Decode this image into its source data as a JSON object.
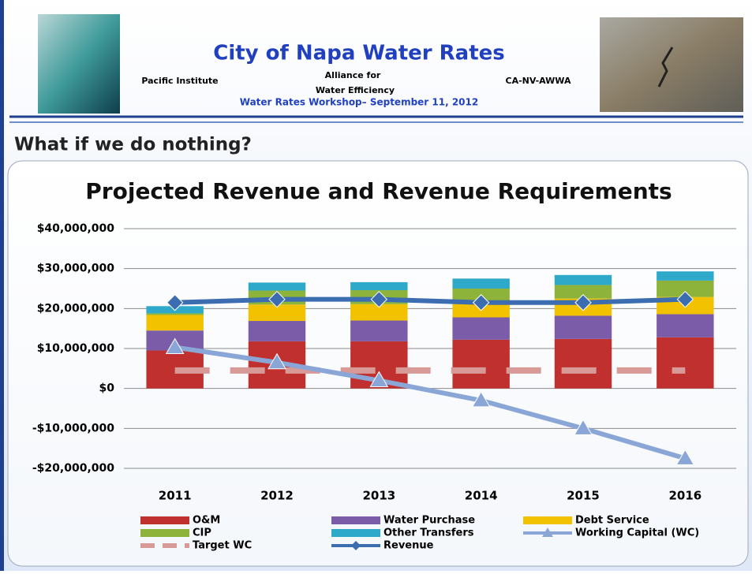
{
  "header": {
    "title": "City of Napa Water Rates",
    "left_org": "Pacific Institute",
    "center_org": [
      "Alliance for",
      "Water Efficiency"
    ],
    "right_org": "CA-NV-AWWA",
    "subtitle": "Water Rates Workshop– September 11, 2012"
  },
  "section_title": "What if we do nothing?",
  "chart_data": {
    "type": "combo",
    "title": "Projected Revenue and Revenue Requirements",
    "categories": [
      "2011",
      "2012",
      "2013",
      "2014",
      "2015",
      "2016"
    ],
    "ylim": [
      -20000000,
      40000000
    ],
    "yticks": [
      {
        "value": -20000000,
        "label": "-$20,000,000"
      },
      {
        "value": -10000000,
        "label": "-$10,000,000"
      },
      {
        "value": 0,
        "label": "$0"
      },
      {
        "value": 10000000,
        "label": "$10,000,000"
      },
      {
        "value": 20000000,
        "label": "$20,000,000"
      },
      {
        "value": 30000000,
        "label": "$30,000,000"
      },
      {
        "value": 40000000,
        "label": "$40,000,000"
      }
    ],
    "grid": true,
    "series": [
      {
        "name": "O&M",
        "type": "bar",
        "color": "#c0302e",
        "values": [
          9500000,
          11800000,
          11800000,
          12200000,
          12400000,
          12800000
        ]
      },
      {
        "name": "Water Purchase",
        "type": "bar",
        "color": "#7a5ca8",
        "values": [
          5000000,
          5100000,
          5200000,
          5600000,
          5800000,
          5800000
        ]
      },
      {
        "name": "Debt Service",
        "type": "bar",
        "color": "#f2c200",
        "values": [
          3900000,
          4100000,
          4100000,
          3800000,
          4300000,
          4300000
        ]
      },
      {
        "name": "CIP",
        "type": "bar",
        "color": "#8db33a",
        "values": [
          400000,
          3500000,
          3500000,
          3400000,
          3400000,
          4100000
        ]
      },
      {
        "name": "Other Transfers",
        "type": "bar",
        "color": "#2ea9c9",
        "values": [
          1800000,
          2000000,
          2000000,
          2500000,
          2500000,
          2300000
        ]
      },
      {
        "name": "Working Capital (WC)",
        "type": "line",
        "marker": "triangle",
        "color": "#8aa6d6",
        "values": [
          10300000,
          6500000,
          2000000,
          -3000000,
          -10000000,
          -17500000
        ]
      },
      {
        "name": "Target WC",
        "type": "line",
        "dashed": true,
        "color": "#d89a96",
        "values": [
          4500000,
          4500000,
          4500000,
          4500000,
          4500000,
          4500000
        ]
      },
      {
        "name": "Revenue",
        "type": "line",
        "marker": "diamond",
        "color": "#3c6db0",
        "values": [
          21500000,
          22300000,
          22300000,
          21500000,
          21500000,
          22300000
        ]
      }
    ]
  }
}
